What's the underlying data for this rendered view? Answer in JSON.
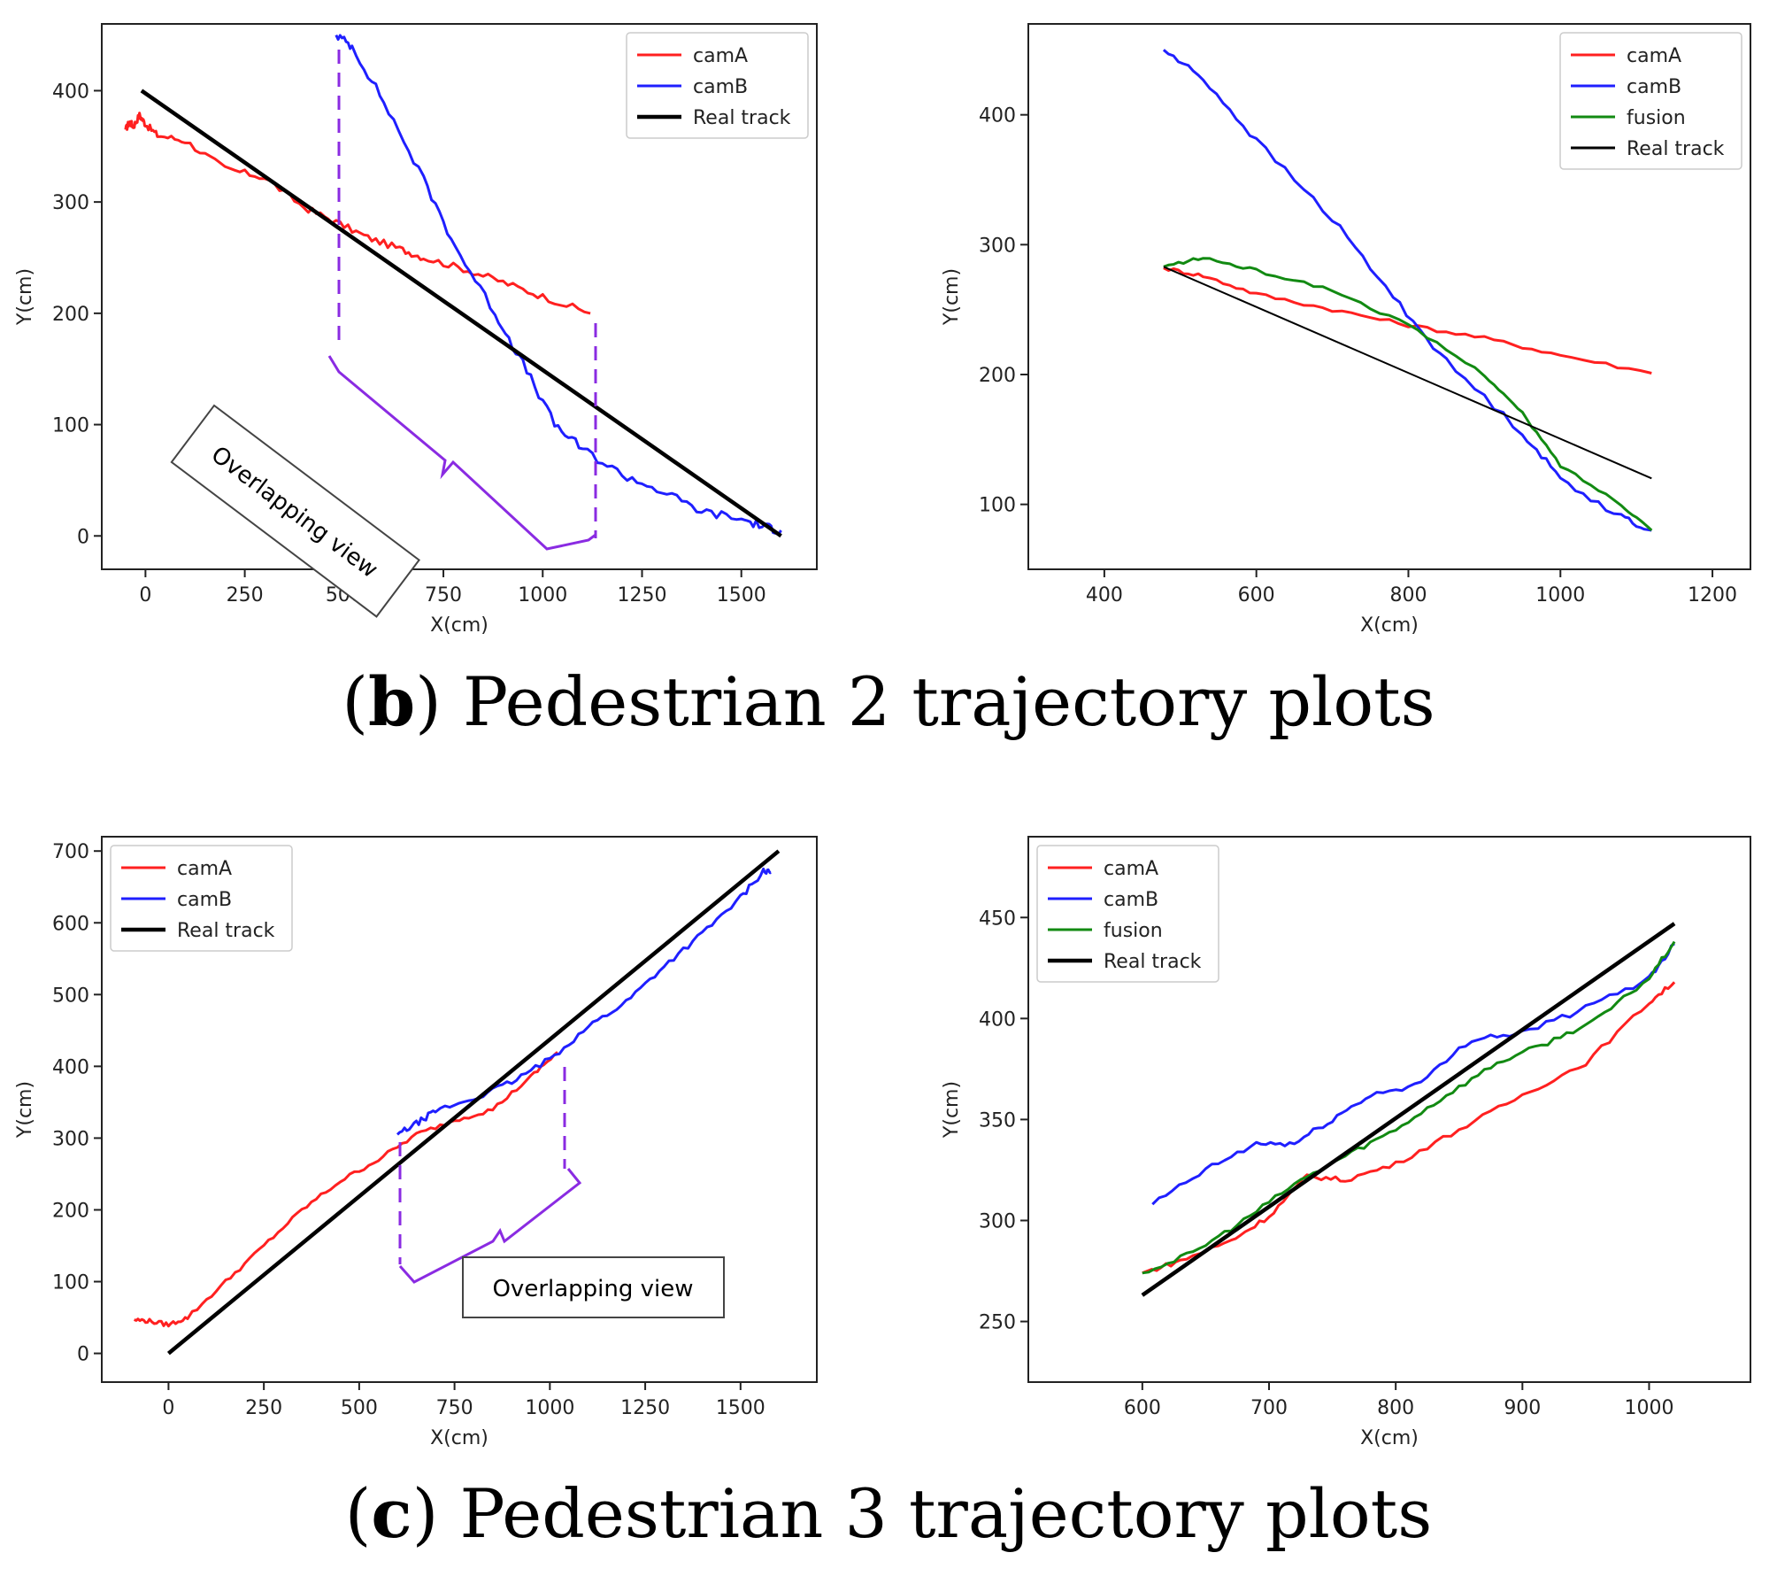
{
  "captions": [
    {
      "label": "b",
      "text": "Pedestrian 2 trajectory plots"
    },
    {
      "label": "c",
      "text": "Pedestrian 3 trajectory plots"
    }
  ],
  "colors": {
    "camA": "#ff2020",
    "camB": "#1f1fff",
    "fusion": "#128a12",
    "real": "#000000",
    "bracket": "#8a2be2"
  },
  "chart_data": [
    {
      "id": "b-left",
      "type": "line",
      "xlabel": "X(cm)",
      "ylabel": "Y(cm)",
      "xlim": [
        -110,
        1690
      ],
      "ylim": [
        -30,
        460
      ],
      "xticks": [
        0,
        250,
        500,
        750,
        1000,
        1250,
        1500
      ],
      "yticks": [
        0,
        100,
        200,
        300,
        400
      ],
      "legend": "top-right",
      "annotation": "Overlapping view",
      "series": [
        {
          "name": "camA",
          "color": "#ff2020",
          "width": 3,
          "noise": 3,
          "points": [
            [
              -50,
              365
            ],
            [
              -40,
              372
            ],
            [
              -30,
              368
            ],
            [
              -15,
              378
            ],
            [
              0,
              370
            ],
            [
              30,
              360
            ],
            [
              100,
              355
            ],
            [
              200,
              330
            ],
            [
              300,
              322
            ],
            [
              400,
              295
            ],
            [
              480,
              282
            ],
            [
              560,
              268
            ],
            [
              640,
              258
            ],
            [
              700,
              250
            ],
            [
              800,
              240
            ],
            [
              900,
              228
            ],
            [
              1000,
              215
            ],
            [
              1120,
              200
            ]
          ]
        },
        {
          "name": "camB",
          "color": "#1f1fff",
          "width": 3,
          "noise": 4,
          "points": [
            [
              480,
              450
            ],
            [
              520,
              440
            ],
            [
              600,
              390
            ],
            [
              700,
              320
            ],
            [
              780,
              260
            ],
            [
              880,
              200
            ],
            [
              950,
              155
            ],
            [
              1030,
              100
            ],
            [
              1100,
              78
            ],
            [
              1200,
              55
            ],
            [
              1300,
              40
            ],
            [
              1400,
              22
            ],
            [
              1500,
              15
            ],
            [
              1560,
              8
            ],
            [
              1600,
              5
            ]
          ]
        },
        {
          "name": "Real track",
          "color": "#000000",
          "width": 4.5,
          "noise": 0,
          "points": [
            [
              -10,
              400
            ],
            [
              1600,
              0
            ]
          ]
        }
      ]
    },
    {
      "id": "b-right",
      "type": "line",
      "xlabel": "X(cm)",
      "ylabel": "Y(cm)",
      "xlim": [
        300,
        1250
      ],
      "ylim": [
        50,
        470
      ],
      "xticks": [
        400,
        600,
        800,
        1000,
        1200
      ],
      "yticks": [
        100,
        200,
        300,
        400
      ],
      "legend": "top-right",
      "series": [
        {
          "name": "camA",
          "color": "#ff2020",
          "width": 3,
          "noise": 1.5,
          "points": [
            [
              478,
              282
            ],
            [
              530,
              276
            ],
            [
              600,
              262
            ],
            [
              700,
              250
            ],
            [
              800,
              238
            ],
            [
              900,
              228
            ],
            [
              1000,
              215
            ],
            [
              1120,
              201
            ]
          ]
        },
        {
          "name": "camB",
          "color": "#1f1fff",
          "width": 3,
          "noise": 2.5,
          "points": [
            [
              478,
              450
            ],
            [
              530,
              428
            ],
            [
              600,
              380
            ],
            [
              700,
              320
            ],
            [
              780,
              260
            ],
            [
              850,
              210
            ],
            [
              950,
              155
            ],
            [
              1000,
              120
            ],
            [
              1080,
              90
            ],
            [
              1120,
              80
            ]
          ]
        },
        {
          "name": "fusion",
          "color": "#128a12",
          "width": 3,
          "noise": 1.2,
          "points": [
            [
              478,
              283
            ],
            [
              530,
              290
            ],
            [
              600,
              280
            ],
            [
              700,
              265
            ],
            [
              800,
              238
            ],
            [
              900,
              200
            ],
            [
              950,
              170
            ],
            [
              1000,
              130
            ],
            [
              1080,
              100
            ],
            [
              1120,
              80
            ]
          ]
        },
        {
          "name": "Real track",
          "color": "#000000",
          "width": 2,
          "noise": 0,
          "points": [
            [
              478,
              283
            ],
            [
              1120,
              120
            ]
          ]
        }
      ]
    },
    {
      "id": "c-left",
      "type": "line",
      "xlabel": "X(cm)",
      "ylabel": "Y(cm)",
      "xlim": [
        -175,
        1700
      ],
      "ylim": [
        -40,
        720
      ],
      "xticks": [
        0,
        250,
        500,
        750,
        1000,
        1250,
        1500
      ],
      "yticks": [
        0,
        100,
        200,
        300,
        400,
        500,
        600,
        700
      ],
      "legend": "top-left",
      "annotation": "Overlapping view",
      "series": [
        {
          "name": "camA",
          "color": "#ff2020",
          "width": 3,
          "noise": 3,
          "points": [
            [
              -90,
              47
            ],
            [
              -50,
              45
            ],
            [
              0,
              40
            ],
            [
              50,
              50
            ],
            [
              150,
              100
            ],
            [
              250,
              150
            ],
            [
              350,
              200
            ],
            [
              450,
              240
            ],
            [
              550,
              270
            ],
            [
              650,
              305
            ],
            [
              750,
              325
            ],
            [
              850,
              340
            ],
            [
              950,
              385
            ],
            [
              1020,
              420
            ]
          ]
        },
        {
          "name": "camB",
          "color": "#1f1fff",
          "width": 3,
          "noise": 4,
          "points": [
            [
              600,
              305
            ],
            [
              650,
              320
            ],
            [
              700,
              338
            ],
            [
              800,
              355
            ],
            [
              900,
              378
            ],
            [
              1000,
              410
            ],
            [
              1100,
              455
            ],
            [
              1200,
              490
            ],
            [
              1300,
              540
            ],
            [
              1400,
              585
            ],
            [
              1500,
              635
            ],
            [
              1560,
              672
            ],
            [
              1580,
              670
            ]
          ]
        },
        {
          "name": "Real track",
          "color": "#000000",
          "width": 4.5,
          "noise": 0,
          "points": [
            [
              0,
              0
            ],
            [
              1600,
              700
            ]
          ]
        }
      ]
    },
    {
      "id": "c-right",
      "type": "line",
      "xlabel": "X(cm)",
      "ylabel": "Y(cm)",
      "xlim": [
        510,
        1080
      ],
      "ylim": [
        220,
        490
      ],
      "xticks": [
        600,
        700,
        800,
        900,
        1000
      ],
      "yticks": [
        250,
        300,
        350,
        400,
        450
      ],
      "legend": "top-left",
      "series": [
        {
          "name": "camA",
          "color": "#ff2020",
          "width": 3,
          "noise": 1.2,
          "points": [
            [
              600,
              274
            ],
            [
              630,
              280
            ],
            [
              670,
              290
            ],
            [
              700,
              302
            ],
            [
              730,
              322
            ],
            [
              760,
              320
            ],
            [
              800,
              328
            ],
            [
              850,
              345
            ],
            [
              900,
              362
            ],
            [
              950,
              378
            ],
            [
              1000,
              408
            ],
            [
              1020,
              418
            ]
          ]
        },
        {
          "name": "camB",
          "color": "#1f1fff",
          "width": 3,
          "noise": 1.5,
          "points": [
            [
              608,
              308
            ],
            [
              650,
              325
            ],
            [
              690,
              338
            ],
            [
              720,
              338
            ],
            [
              750,
              350
            ],
            [
              780,
              362
            ],
            [
              820,
              368
            ],
            [
              860,
              390
            ],
            [
              900,
              393
            ],
            [
              950,
              405
            ],
            [
              1000,
              420
            ],
            [
              1020,
              437
            ]
          ]
        },
        {
          "name": "fusion",
          "color": "#128a12",
          "width": 3,
          "noise": 1.2,
          "points": [
            [
              600,
              274
            ],
            [
              640,
              284
            ],
            [
              680,
              300
            ],
            [
              720,
              318
            ],
            [
              760,
              332
            ],
            [
              800,
              345
            ],
            [
              840,
              362
            ],
            [
              880,
              378
            ],
            [
              920,
              388
            ],
            [
              960,
              400
            ],
            [
              1000,
              420
            ],
            [
              1020,
              438
            ]
          ]
        },
        {
          "name": "Real track",
          "color": "#000000",
          "width": 4.5,
          "noise": 0,
          "points": [
            [
              600,
              263
            ],
            [
              1020,
              447
            ]
          ]
        }
      ]
    }
  ]
}
